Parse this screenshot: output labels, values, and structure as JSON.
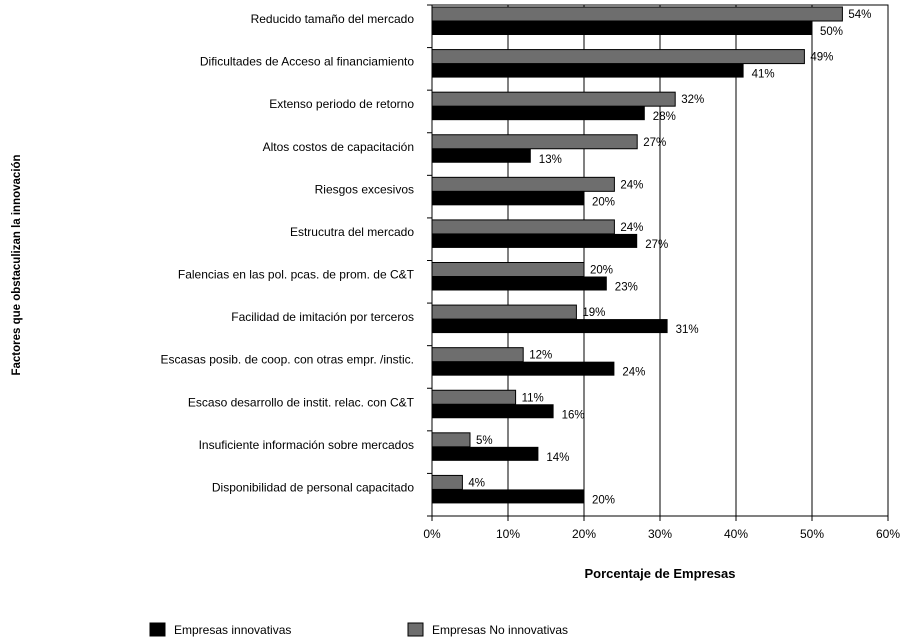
{
  "chart_data": {
    "type": "bar",
    "orientation": "horizontal",
    "title": "",
    "xlabel": "Porcentaje de Empresas",
    "ylabel": "Factores que obstaculizan la innovación",
    "xlim": [
      0,
      60
    ],
    "x_ticks": [
      "0%",
      "10%",
      "20%",
      "30%",
      "40%",
      "50%",
      "60%"
    ],
    "grid": "vertical",
    "legend_position": "bottom",
    "categories": [
      "Reducido tamaño del mercado",
      "Dificultades de Acceso al financiamiento",
      "Extenso periodo de retorno",
      "Altos costos de capacitación",
      "Riesgos excesivos",
      "Estrucutra del mercado",
      "Falencias en las pol. pcas. de prom. de C&T",
      "Facilidad de imitación por terceros",
      "Escasas posib. de coop. con otras empr. /instic.",
      "Escaso desarrollo de instit. relac. con C&T",
      "Insuficiente información sobre mercados",
      "Disponibilidad de personal capacitado"
    ],
    "series": [
      {
        "name": "Empresas No innovativas",
        "color": "#6e6e6e",
        "values": [
          54,
          49,
          32,
          27,
          24,
          24,
          20,
          19,
          12,
          11,
          5,
          4
        ],
        "labels": [
          "54%",
          "49%",
          "32%",
          "27%",
          "24%",
          "24%",
          "20%",
          "19%",
          "12%",
          "11%",
          "5%",
          "4%"
        ]
      },
      {
        "name": "Empresas innovativas",
        "color": "#000000",
        "values": [
          50,
          41,
          28,
          13,
          20,
          27,
          23,
          31,
          24,
          16,
          14,
          20
        ],
        "labels": [
          "50%",
          "41%",
          "28%",
          "13%",
          "20%",
          "27%",
          "23%",
          "31%",
          "24%",
          "16%",
          "14%",
          "20%"
        ]
      }
    ],
    "legend_order": [
      "Empresas innovativas",
      "Empresas No innovativas"
    ]
  }
}
